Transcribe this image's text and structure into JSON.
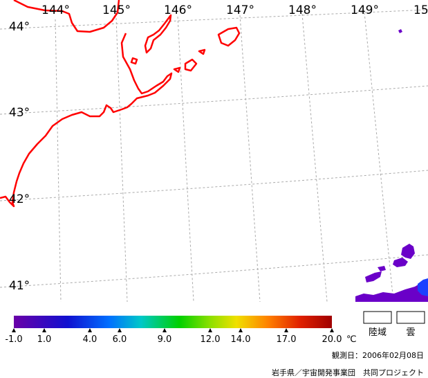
{
  "map": {
    "lon_labels": [
      "144°",
      "145°",
      "146°",
      "147°",
      "148°",
      "149°",
      "15"
    ],
    "lat_labels": [
      "44°",
      "43°",
      "42°",
      "41°"
    ]
  },
  "legend": {
    "ticks": [
      "-1.0",
      "1.0",
      "4.0",
      "6.0",
      "9.0",
      "12.0",
      "14.0",
      "17.0",
      "20.0"
    ],
    "unit": "℃",
    "land_label": "陸域",
    "cloud_label": "雲",
    "colors": {
      "coastline": "#ff0000",
      "grid": "#aaaaaa",
      "cold": "#6a00c8"
    }
  },
  "footer": {
    "observation_date": "観測日：2006年02月08日",
    "credit": "岩手県／宇宙開発事業団　共同プロジェクト"
  }
}
